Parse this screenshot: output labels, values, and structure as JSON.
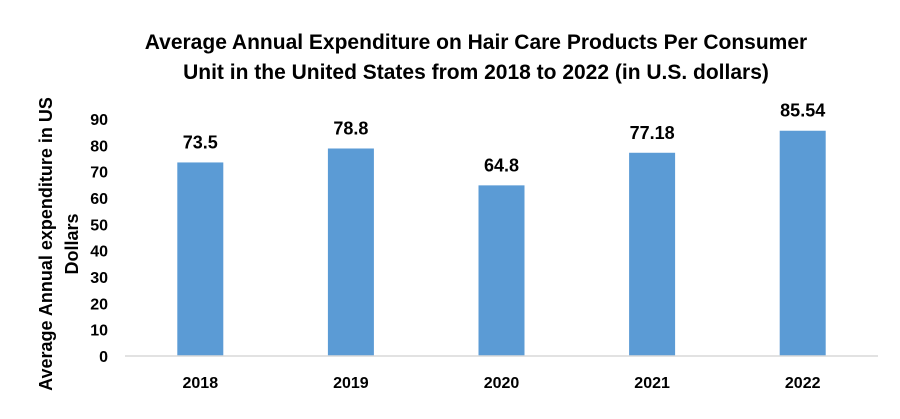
{
  "chart_data": {
    "type": "bar",
    "title_lines": [
      "Average Annual Expenditure on Hair Care Products Per Consumer",
      "Unit in the United States from 2018 to 2022 (in U.S. dollars)"
    ],
    "ylabel_lines": [
      "Average Annual expenditure in US",
      "Dollars"
    ],
    "xlabel": "",
    "categories": [
      "2018",
      "2019",
      "2020",
      "2021",
      "2022"
    ],
    "values": [
      73.5,
      78.8,
      64.8,
      77.18,
      85.54
    ],
    "value_labels": [
      "73.5",
      "78.8",
      "64.8",
      "77.18",
      "85.54"
    ],
    "ylim": [
      0,
      90
    ],
    "yticks": [
      0,
      10,
      20,
      30,
      40,
      50,
      60,
      70,
      80,
      90
    ],
    "grid": false,
    "legend": "none",
    "bar_color": "#5b9bd5"
  }
}
